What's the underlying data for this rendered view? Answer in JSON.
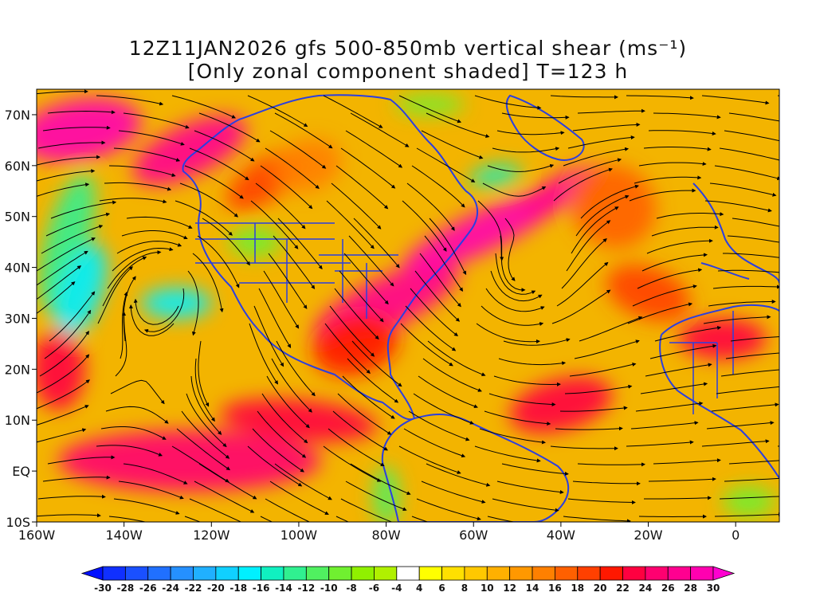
{
  "title_line1": "12Z11JAN2026 gfs 500-850mb vertical shear (ms⁻¹)",
  "title_line2": "[Only zonal component shaded] T=123 h",
  "map": {
    "lon_range": [
      -160,
      10
    ],
    "lat_range": [
      -10,
      75
    ],
    "lat_ticks": [
      {
        "value": 70,
        "label": "70N"
      },
      {
        "value": 60,
        "label": "60N"
      },
      {
        "value": 50,
        "label": "50N"
      },
      {
        "value": 40,
        "label": "40N"
      },
      {
        "value": 30,
        "label": "30N"
      },
      {
        "value": 20,
        "label": "20N"
      },
      {
        "value": 10,
        "label": "10N"
      },
      {
        "value": 0,
        "label": "EQ"
      },
      {
        "value": -10,
        "label": "10S"
      }
    ],
    "lon_ticks": [
      {
        "value": -160,
        "label": "160W"
      },
      {
        "value": -140,
        "label": "140W"
      },
      {
        "value": -120,
        "label": "120W"
      },
      {
        "value": -100,
        "label": "100W"
      },
      {
        "value": -80,
        "label": "80W"
      },
      {
        "value": -60,
        "label": "60W"
      },
      {
        "value": -40,
        "label": "40W"
      },
      {
        "value": -20,
        "label": "20W"
      },
      {
        "value": 0,
        "label": "0"
      }
    ],
    "background_fill": "#f3b400"
  },
  "colorbar": {
    "labels": [
      "-30",
      "-28",
      "-26",
      "-24",
      "-22",
      "-20",
      "-18",
      "-16",
      "-14",
      "-12",
      "-10",
      "-8",
      "-6",
      "-4",
      "4",
      "6",
      "8",
      "10",
      "12",
      "14",
      "16",
      "18",
      "20",
      "22",
      "24",
      "26",
      "28",
      "30"
    ],
    "colors": [
      "#1030ff",
      "#1a50ff",
      "#2070ff",
      "#2590ff",
      "#20b0ff",
      "#10d0ff",
      "#00f0ff",
      "#10f0c0",
      "#30f090",
      "#50f060",
      "#70f030",
      "#90f000",
      "#b0f000",
      "#ffffff",
      "#ffff00",
      "#ffe000",
      "#ffc800",
      "#ffb000",
      "#ff9800",
      "#ff8000",
      "#ff6000",
      "#ff4000",
      "#ff1800",
      "#ff0040",
      "#ff0070",
      "#ff0090",
      "#ff00b0"
    ]
  },
  "shading": [
    {
      "lon": -150,
      "lat": 67,
      "rx": 14,
      "ry": 6,
      "value": 28,
      "rot": -10
    },
    {
      "lon": -125,
      "lat": 63,
      "rx": 14,
      "ry": 5,
      "value": 26,
      "rot": -25
    },
    {
      "lon": -108,
      "lat": 57,
      "rx": 10,
      "ry": 4,
      "value": 18,
      "rot": -35
    },
    {
      "lon": -98,
      "lat": 60,
      "rx": 8,
      "ry": 5,
      "value": 14,
      "rot": -20
    },
    {
      "lon": -153,
      "lat": 45,
      "rx": 5,
      "ry": 14,
      "value": -14,
      "rot": 15
    },
    {
      "lon": -150,
      "lat": 35,
      "rx": 5,
      "ry": 10,
      "value": -18,
      "rot": 20
    },
    {
      "lon": -128,
      "lat": 33,
      "rx": 8,
      "ry": 3,
      "value": -18,
      "rot": 0
    },
    {
      "lon": -110,
      "lat": 45,
      "rx": 6,
      "ry": 3,
      "value": -10,
      "rot": 0
    },
    {
      "lon": -80,
      "lat": 33,
      "rx": 18,
      "ry": 5,
      "value": 26,
      "rot": -25
    },
    {
      "lon": -58,
      "lat": 47,
      "rx": 20,
      "ry": 4,
      "value": 28,
      "rot": -25
    },
    {
      "lon": -40,
      "lat": 55,
      "rx": 10,
      "ry": 3,
      "value": 26,
      "rot": -30
    },
    {
      "lon": -55,
      "lat": 58,
      "rx": 6,
      "ry": 2,
      "value": -16,
      "rot": -10
    },
    {
      "lon": -87,
      "lat": 25,
      "rx": 10,
      "ry": 6,
      "value": 20,
      "rot": -15
    },
    {
      "lon": -28,
      "lat": 52,
      "rx": 10,
      "ry": 8,
      "value": 16,
      "rot": 35
    },
    {
      "lon": -20,
      "lat": 35,
      "rx": 10,
      "ry": 5,
      "value": 18,
      "rot": 20
    },
    {
      "lon": -3,
      "lat": 26,
      "rx": 10,
      "ry": 4,
      "value": 22,
      "rot": 0
    },
    {
      "lon": -40,
      "lat": 13,
      "rx": 12,
      "ry": 5,
      "value": 22,
      "rot": -15
    },
    {
      "lon": -125,
      "lat": 2,
      "rx": 30,
      "ry": 6,
      "value": 24,
      "rot": 0
    },
    {
      "lon": -100,
      "lat": 10,
      "rx": 18,
      "ry": 4,
      "value": 22,
      "rot": 5
    },
    {
      "lon": -155,
      "lat": 20,
      "rx": 6,
      "ry": 8,
      "value": 22,
      "rot": 0
    },
    {
      "lon": -80,
      "lat": -5,
      "rx": 3,
      "ry": 6,
      "value": -12,
      "rot": 0
    },
    {
      "lon": 3,
      "lat": -6,
      "rx": 6,
      "ry": 3,
      "value": -10,
      "rot": 0
    },
    {
      "lon": -70,
      "lat": 72,
      "rx": 8,
      "ry": 2,
      "value": -10,
      "rot": 0
    }
  ]
}
